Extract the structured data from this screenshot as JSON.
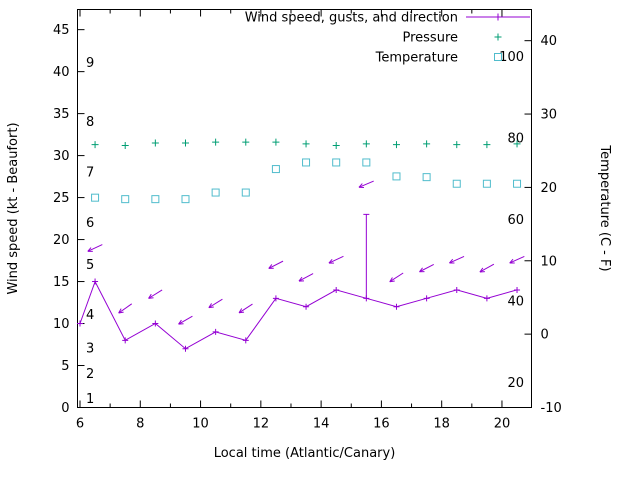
{
  "chart_data": {
    "type": "line",
    "title": "",
    "xlabel": "Local time (Atlantic/Canary)",
    "ylabel_left": "Wind speed (kt - Beaufort)",
    "ylabel_right": "Temperature (C - F)",
    "x_range": [
      5.917,
      20.98
    ],
    "x_ticks": [
      6,
      8,
      10,
      12,
      14,
      16,
      18,
      20
    ],
    "x_minor_ticks": [
      7,
      9,
      11,
      13,
      15,
      17,
      19,
      21
    ],
    "y_left_range": [
      0,
      47.4
    ],
    "y_left_ticks": [
      0,
      5,
      10,
      15,
      20,
      25,
      30,
      35,
      40,
      45
    ],
    "y_right_range": [
      -10,
      44.25
    ],
    "y_right_ticks": [
      -10,
      0,
      10,
      20,
      30,
      40
    ],
    "grid": "off",
    "legend_position": "top-right-inside",
    "legend": [
      {
        "label": "Wind speed, gusts, and direction",
        "series": "wind",
        "marker": "line-plus"
      },
      {
        "label": "Pressure",
        "series": "pressure",
        "marker": "plus"
      },
      {
        "label": "Temperature",
        "series": "temperature",
        "marker": "open-square"
      }
    ],
    "colors": {
      "wind": "#9400d3",
      "pressure": "#009e73",
      "temperature": "#50bccc",
      "axis": "#000000"
    },
    "beaufort_scale_labels": [
      {
        "label": "1",
        "kt": 1
      },
      {
        "label": "2",
        "kt": 4
      },
      {
        "label": "3",
        "kt": 7
      },
      {
        "label": "4",
        "kt": 11
      },
      {
        "label": "5",
        "kt": 17
      },
      {
        "label": "6",
        "kt": 22
      },
      {
        "label": "7",
        "kt": 28
      },
      {
        "label": "8",
        "kt": 34
      },
      {
        "label": "9",
        "kt": 41
      }
    ],
    "fahrenheit_scale_labels": [
      20,
      40,
      60,
      80,
      100
    ],
    "series": {
      "wind_speed": {
        "name": "Wind speed (kt)",
        "x": [
          6.0,
          6.5,
          7.5,
          8.5,
          9.5,
          10.5,
          11.5,
          12.5,
          13.5,
          14.5,
          15.5,
          16.5,
          17.5,
          18.5,
          19.5,
          20.5
        ],
        "values": [
          10,
          15,
          8,
          10,
          7,
          9,
          8,
          13,
          12,
          14,
          13,
          12,
          13,
          14,
          13,
          14
        ]
      },
      "wind_gusts": [
        {
          "x": 15.5,
          "from_kt": 13,
          "to_kt": 23
        }
      ],
      "wind_direction_arrows": {
        "x": [
          6.5,
          7.5,
          8.5,
          9.5,
          10.5,
          11.5,
          12.5,
          13.5,
          14.5,
          15.5,
          16.5,
          17.5,
          18.5,
          19.5,
          20.5
        ],
        "kt": [
          19,
          11.8,
          13.5,
          10.4,
          12.4,
          11.8,
          17,
          15.5,
          17.6,
          26.6,
          15.5,
          16.6,
          17.6,
          16.6,
          17.6
        ],
        "angle_deg": [
          205,
          215,
          212,
          210,
          212,
          213,
          207,
          208,
          205,
          203,
          213,
          207,
          204,
          209,
          204
        ]
      },
      "pressure": {
        "name": "Pressure",
        "x": [
          6.5,
          7.5,
          8.5,
          9.5,
          10.5,
          11.5,
          12.5,
          13.5,
          14.5,
          15.5,
          16.5,
          17.5,
          18.5,
          19.5,
          20.5
        ],
        "values_left_axis": [
          31.3,
          31.2,
          31.5,
          31.5,
          31.6,
          31.6,
          31.6,
          31.4,
          31.2,
          31.4,
          31.3,
          31.4,
          31.3,
          31.3,
          31.4
        ]
      },
      "temperature": {
        "name": "Temperature (C)",
        "x": [
          6.5,
          7.5,
          8.5,
          9.5,
          10.5,
          11.5,
          12.5,
          13.5,
          14.5,
          15.5,
          16.5,
          17.5,
          18.5,
          19.5,
          20.5
        ],
        "values_c": [
          18.6,
          18.4,
          18.4,
          18.4,
          19.3,
          19.3,
          22.5,
          23.4,
          23.4,
          23.4,
          21.5,
          21.4,
          20.5,
          20.5,
          20.5
        ]
      }
    }
  }
}
